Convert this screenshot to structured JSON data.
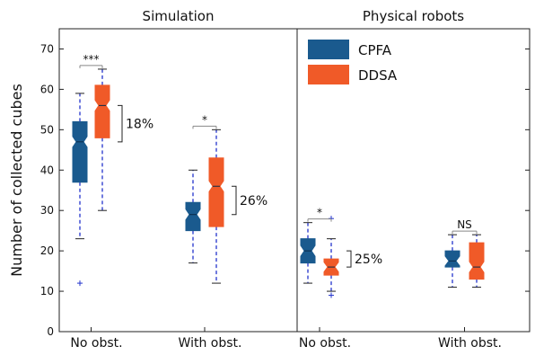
{
  "chart_data": {
    "type": "box",
    "ylabel": "Number of collected cubes",
    "ylim": [
      0,
      75
    ],
    "yticks": [
      0,
      10,
      20,
      30,
      40,
      50,
      60,
      70
    ],
    "legend": {
      "placement": "top-left of right panel",
      "entries": [
        {
          "name": "CPFA",
          "color": "#1a5a8e"
        },
        {
          "name": "DDSA",
          "color": "#f05a28"
        }
      ]
    },
    "panels": [
      {
        "title": "Simulation",
        "categories": [
          "No obst.",
          "With obst."
        ],
        "series": [
          {
            "name": "CPFA",
            "color": "#1a5a8e",
            "boxes": [
              {
                "min": 23,
                "q1": 37,
                "median": 47,
                "q3": 52,
                "max": 59,
                "outliers": [
                  12
                ]
              },
              {
                "min": 17,
                "q1": 25,
                "median": 29,
                "q3": 32,
                "max": 40,
                "outliers": []
              }
            ]
          },
          {
            "name": "DDSA",
            "color": "#f05a28",
            "boxes": [
              {
                "min": 30,
                "q1": 48,
                "median": 56,
                "q3": 61,
                "max": 65,
                "outliers": []
              },
              {
                "min": 12,
                "q1": 26,
                "median": 36,
                "q3": 43,
                "max": 50,
                "outliers": []
              }
            ]
          }
        ],
        "annotations": [
          {
            "category": 0,
            "significance": "***",
            "difference": "18%"
          },
          {
            "category": 1,
            "significance": "*",
            "difference": "26%"
          }
        ]
      },
      {
        "title": "Physical robots",
        "categories": [
          "No obst.",
          "With obst."
        ],
        "series": [
          {
            "name": "CPFA",
            "color": "#1a5a8e",
            "boxes": [
              {
                "min": 12,
                "q1": 17,
                "median": 20,
                "q3": 23,
                "max": 27,
                "outliers": []
              },
              {
                "min": 11,
                "q1": 16,
                "median": 17.5,
                "q3": 20,
                "max": 24,
                "outliers": []
              }
            ]
          },
          {
            "name": "DDSA",
            "color": "#f05a28",
            "boxes": [
              {
                "min": 10,
                "q1": 14,
                "median": 16,
                "q3": 18,
                "max": 23,
                "outliers": [
                  9,
                  28
                ]
              },
              {
                "min": 11,
                "q1": 13,
                "median": 16,
                "q3": 22,
                "max": 24,
                "outliers": []
              }
            ]
          }
        ],
        "annotations": [
          {
            "category": 0,
            "significance": "*",
            "difference": "25%"
          },
          {
            "category": 1,
            "significance": "NS",
            "difference": ""
          }
        ]
      }
    ]
  }
}
